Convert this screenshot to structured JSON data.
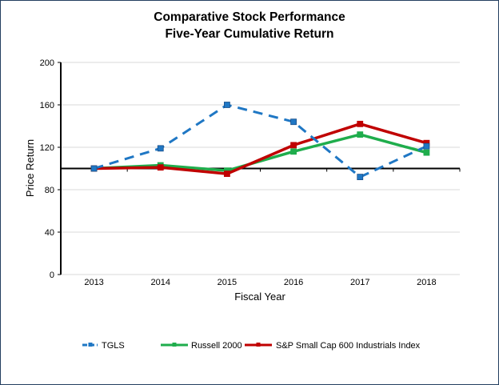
{
  "chart_data": {
    "type": "line",
    "title": "Comparative Stock Performance",
    "subtitle": "Five-Year Cumulative Return",
    "xlabel": "Fiscal Year",
    "ylabel": "Price Return",
    "categories": [
      "2013",
      "2014",
      "2015",
      "2016",
      "2017",
      "2018"
    ],
    "ylim": [
      0,
      200
    ],
    "yticks": [
      0,
      40,
      80,
      120,
      160,
      200
    ],
    "reference_line": 100,
    "grid": true,
    "legend_position": "bottom",
    "series": [
      {
        "name": "TGLS",
        "color": "#1f77c4",
        "style": "dashed",
        "marker": "square",
        "values": [
          100,
          119,
          160,
          144,
          92,
          121
        ]
      },
      {
        "name": "Russell 2000",
        "color": "#1fad4c",
        "style": "solid",
        "marker": "square",
        "values": [
          100,
          103,
          98,
          116,
          132,
          115
        ]
      },
      {
        "name": "S&P Small Cap 600 Industrials Index",
        "color": "#c00000",
        "style": "solid",
        "marker": "square",
        "values": [
          100,
          101,
          95,
          122,
          142,
          124
        ]
      }
    ]
  }
}
